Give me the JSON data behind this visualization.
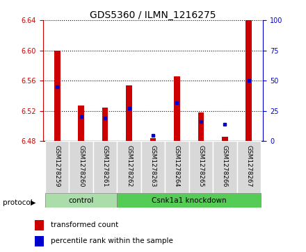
{
  "title": "GDS5360 / ILMN_1216275",
  "samples": [
    "GSM1278259",
    "GSM1278260",
    "GSM1278261",
    "GSM1278262",
    "GSM1278263",
    "GSM1278264",
    "GSM1278265",
    "GSM1278266",
    "GSM1278267"
  ],
  "red_values": [
    6.6,
    6.527,
    6.524,
    6.554,
    6.484,
    6.566,
    6.518,
    6.486,
    6.67
  ],
  "blue_values_pct": [
    45,
    20,
    19,
    27,
    5,
    32,
    16,
    14,
    50
  ],
  "ylim_left": [
    6.48,
    6.64
  ],
  "ylim_right": [
    0,
    100
  ],
  "yticks_left": [
    6.48,
    6.52,
    6.56,
    6.6,
    6.64
  ],
  "yticks_right": [
    0,
    25,
    50,
    75,
    100
  ],
  "control_count": 3,
  "knockdown_count": 6,
  "control_label": "control",
  "knockdown_label": "Csnk1a1 knockdown",
  "protocol_label": "protocol",
  "legend_red": "transformed count",
  "legend_blue": "percentile rank within the sample",
  "bar_color": "#cc0000",
  "blue_color": "#0000cc",
  "control_bg": "#aaddaa",
  "knockdown_bg": "#55cc55",
  "axis_left_color": "#cc0000",
  "axis_right_color": "#0000cc",
  "bar_width": 0.25,
  "bar_baseline": 6.48,
  "plot_bg": "#e8e8e8",
  "title_fontsize": 10,
  "tick_fontsize": 7,
  "label_fontsize": 7.5
}
